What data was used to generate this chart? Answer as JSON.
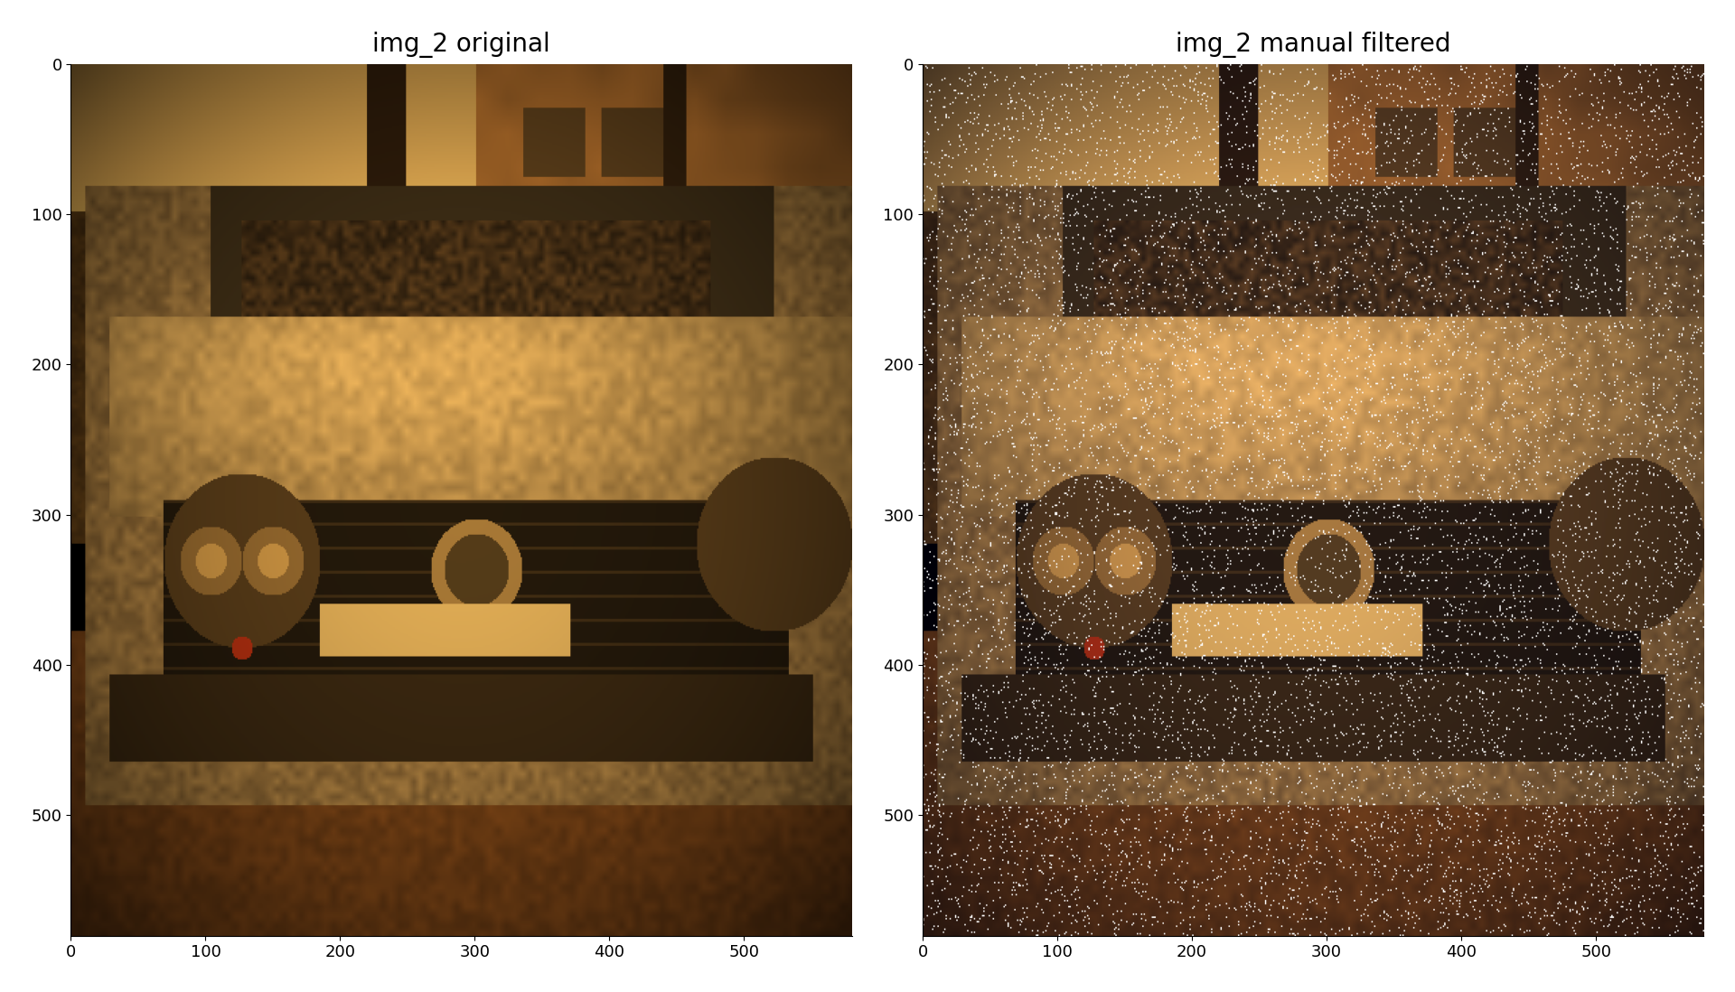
{
  "title_left": "img_2 original",
  "title_right": "img_2 manual filtered",
  "title_fontsize": 20,
  "background_color": "#ffffff",
  "noise_density": 0.035,
  "figure_width": 19.2,
  "figure_height": 10.98,
  "xticks": [
    0,
    100,
    200,
    300,
    400,
    500
  ],
  "yticks": [
    0,
    100,
    200,
    300,
    400,
    500
  ]
}
